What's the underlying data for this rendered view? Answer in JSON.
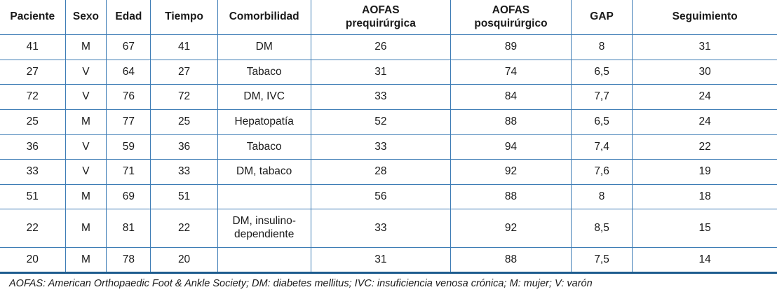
{
  "table": {
    "columns": [
      "Paciente",
      "Sexo",
      "Edad",
      "Tiempo",
      "Comorbilidad",
      "AOFAS\nprequirúrgica",
      "AOFAS\nposquirúrgico",
      "GAP",
      "Seguimiento"
    ],
    "rows": [
      [
        "41",
        "M",
        "67",
        "41",
        "DM",
        "26",
        "89",
        "8",
        "31"
      ],
      [
        "27",
        "V",
        "64",
        "27",
        "Tabaco",
        "31",
        "74",
        "6,5",
        "30"
      ],
      [
        "72",
        "V",
        "76",
        "72",
        "DM, IVC",
        "33",
        "84",
        "7,7",
        "24"
      ],
      [
        "25",
        "M",
        "77",
        "25",
        "Hepatopatía",
        "52",
        "88",
        "6,5",
        "24"
      ],
      [
        "36",
        "V",
        "59",
        "36",
        "Tabaco",
        "33",
        "94",
        "7,4",
        "22"
      ],
      [
        "33",
        "V",
        "71",
        "33",
        "DM, tabaco",
        "28",
        "92",
        "7,6",
        "19"
      ],
      [
        "51",
        "M",
        "69",
        "51",
        "",
        "56",
        "88",
        "8",
        "18"
      ],
      [
        "22",
        "M",
        "81",
        "22",
        "DM, insulino-dependiente",
        "33",
        "92",
        "8,5",
        "15"
      ],
      [
        "20",
        "M",
        "78",
        "20",
        "",
        "31",
        "88",
        "7,5",
        "14"
      ]
    ]
  },
  "footnote": "AOFAS: American Orthopaedic Foot & Ankle Society; DM: diabetes mellitus; IVC: insuficiencia venosa crónica; M: mujer; V: varón",
  "colors": {
    "grid_line": "#3d7cb5",
    "heavy_rule": "#1e5c8e",
    "text": "#1a1a1a",
    "background": "#ffffff"
  }
}
